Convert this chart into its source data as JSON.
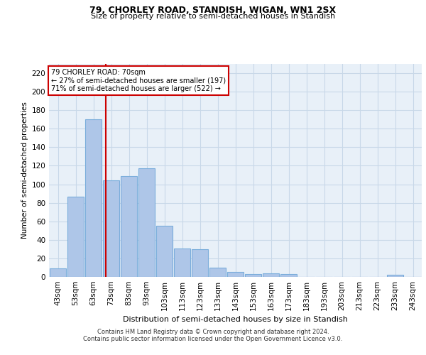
{
  "title": "79, CHORLEY ROAD, STANDISH, WIGAN, WN1 2SX",
  "subtitle": "Size of property relative to semi-detached houses in Standish",
  "xlabel": "Distribution of semi-detached houses by size in Standish",
  "ylabel": "Number of semi-detached properties",
  "categories": [
    "43sqm",
    "53sqm",
    "63sqm",
    "73sqm",
    "83sqm",
    "93sqm",
    "103sqm",
    "113sqm",
    "123sqm",
    "133sqm",
    "143sqm",
    "153sqm",
    "163sqm",
    "173sqm",
    "183sqm",
    "193sqm",
    "203sqm",
    "213sqm",
    "223sqm",
    "233sqm",
    "243sqm"
  ],
  "values": [
    9,
    87,
    170,
    104,
    109,
    117,
    55,
    31,
    30,
    10,
    5,
    3,
    4,
    3,
    0,
    0,
    0,
    0,
    0,
    2,
    0
  ],
  "bar_color": "#aec6e8",
  "bar_edgecolor": "#7aaddb",
  "bar_linewidth": 0.8,
  "vline_color": "#cc0000",
  "annotation_line1": "79 CHORLEY ROAD: 70sqm",
  "annotation_line2": "← 27% of semi-detached houses are smaller (197)",
  "annotation_line3": "71% of semi-detached houses are larger (522) →",
  "annotation_box_edgecolor": "#cc0000",
  "ylim_max": 230,
  "yticks": [
    0,
    20,
    40,
    60,
    80,
    100,
    120,
    140,
    160,
    180,
    200,
    220
  ],
  "grid_color": "#c8d8e8",
  "plot_bg_color": "#e8f0f8",
  "footer1": "Contains HM Land Registry data © Crown copyright and database right 2024.",
  "footer2": "Contains public sector information licensed under the Open Government Licence v3.0."
}
